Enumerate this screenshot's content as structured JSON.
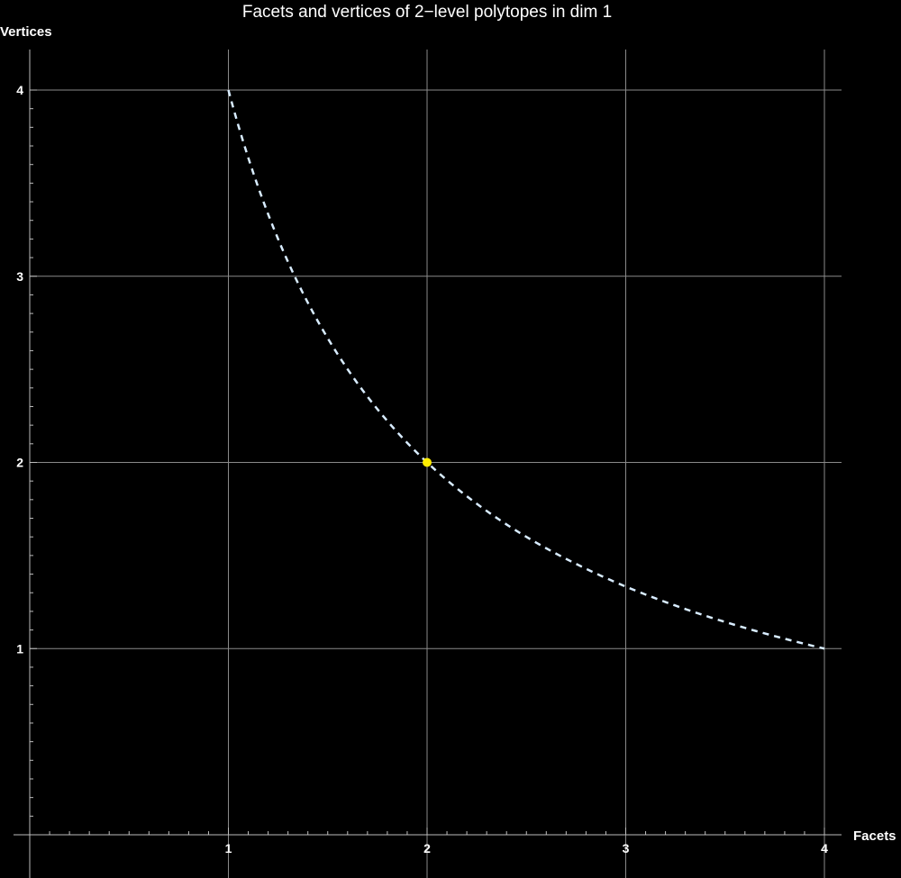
{
  "chart_data": {
    "type": "line",
    "title": "Facets and vertices of 2−level polytopes in dim 1",
    "xlabel": "Facets",
    "ylabel": "Vertices",
    "xlim": [
      0,
      4
    ],
    "ylim": [
      0,
      4
    ],
    "x_ticks": [
      1,
      2,
      3,
      4
    ],
    "y_ticks": [
      1,
      2,
      3,
      4
    ],
    "x_tick_labels": [
      "1",
      "2",
      "3",
      "4"
    ],
    "y_tick_labels": [
      "1",
      "2",
      "3",
      "4"
    ],
    "grid": true,
    "series": [
      {
        "style": "dashed",
        "color": "#d8ecff",
        "x": [
          1,
          1.25,
          1.5,
          1.75,
          2,
          2.25,
          2.5,
          2.75,
          3,
          3.25,
          3.5,
          3.75,
          4
        ],
        "y": [
          4,
          3.2,
          2.667,
          2.286,
          2,
          1.778,
          1.6,
          1.455,
          1.333,
          1.231,
          1.143,
          1.067,
          1
        ]
      },
      {
        "style": "point",
        "color": "#ffee00",
        "x": [
          2
        ],
        "y": [
          2
        ]
      }
    ],
    "background": "#000000"
  }
}
